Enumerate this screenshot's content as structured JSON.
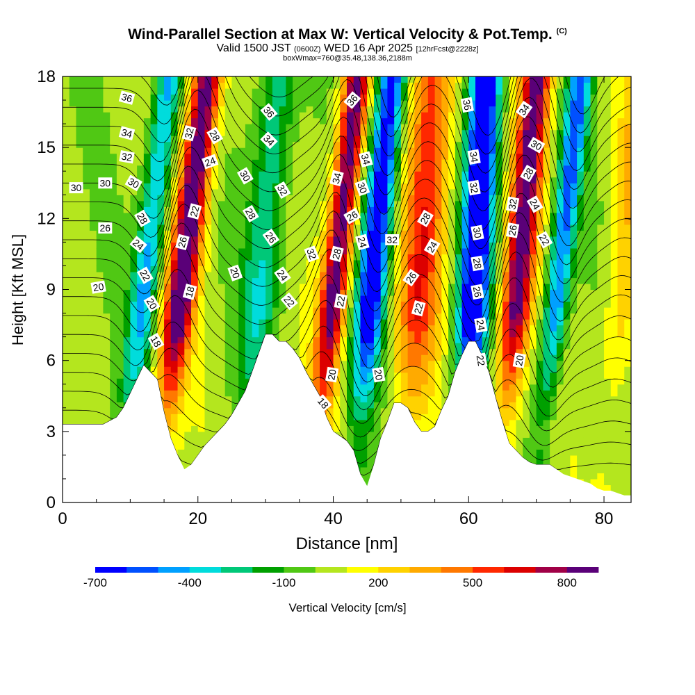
{
  "header": {
    "title": "Wind-Parallel Section at Max W: Vertical Velocity & Pot.Temp.",
    "copyright": "(C)",
    "valid_prefix": "Valid 1500 JST",
    "valid_utc": "(0600Z)",
    "valid_date": "WED 16 Apr 2025",
    "forecast": "[12hrFcst@2228z]",
    "boxline": "boxWmax=760@35.48,138.36,2188m"
  },
  "chart_data": {
    "type": "heatmap",
    "xlabel": "Distance [nm]",
    "ylabel": "Height [Kft MSL]",
    "xlim": [
      0,
      84
    ],
    "ylim": [
      0,
      18
    ],
    "x_ticks": [
      0,
      20,
      40,
      60,
      80
    ],
    "y_ticks": [
      0,
      3,
      6,
      9,
      12,
      15,
      18
    ],
    "colorbar": {
      "label": "Vertical Velocity [cm/s]",
      "tick_labels": [
        "-700",
        "-400",
        "-100",
        "200",
        "500",
        "800"
      ],
      "tick_values": [
        -700,
        -400,
        -100,
        200,
        500,
        800
      ],
      "range": [
        -700,
        900
      ],
      "colors": [
        "#0000ff",
        "#0050ff",
        "#00a0ff",
        "#00dcdc",
        "#00c878",
        "#00a000",
        "#50c814",
        "#b4e61e",
        "#ffff00",
        "#ffd200",
        "#ffaa00",
        "#ff7800",
        "#ff2800",
        "#dc0000",
        "#a00046",
        "#5a0078"
      ]
    },
    "terrain": [
      [
        0,
        3.3
      ],
      [
        6,
        3.3
      ],
      [
        8,
        3.6
      ],
      [
        9,
        4.0
      ],
      [
        10,
        4.6
      ],
      [
        11,
        5.2
      ],
      [
        12,
        5.8
      ],
      [
        14,
        5.2
      ],
      [
        15,
        3.8
      ],
      [
        16,
        2.7
      ],
      [
        17,
        2.0
      ],
      [
        18,
        1.4
      ],
      [
        19,
        1.6
      ],
      [
        20,
        2.0
      ],
      [
        21,
        2.4
      ],
      [
        22,
        2.7
      ],
      [
        23,
        3.0
      ],
      [
        24,
        3.3
      ],
      [
        25,
        3.7
      ],
      [
        26,
        4.2
      ],
      [
        27,
        4.7
      ],
      [
        28,
        5.5
      ],
      [
        29,
        6.3
      ],
      [
        30,
        7.1
      ],
      [
        31,
        7.1
      ],
      [
        32,
        6.8
      ],
      [
        33,
        6.8
      ],
      [
        34,
        6.5
      ],
      [
        35,
        6.1
      ],
      [
        36,
        5.5
      ],
      [
        37,
        5.0
      ],
      [
        38,
        4.5
      ],
      [
        39,
        3.6
      ],
      [
        40,
        3.0
      ],
      [
        41,
        2.8
      ],
      [
        42,
        2.6
      ],
      [
        43,
        2.2
      ],
      [
        44,
        1.2
      ],
      [
        45,
        0.7
      ],
      [
        46,
        1.6
      ],
      [
        47,
        2.7
      ],
      [
        48,
        3.4
      ],
      [
        49,
        4.2
      ],
      [
        50,
        4.2
      ],
      [
        51,
        4.0
      ],
      [
        52,
        3.4
      ],
      [
        53,
        3.0
      ],
      [
        54,
        3.0
      ],
      [
        55,
        3.2
      ],
      [
        56,
        3.9
      ],
      [
        57,
        4.5
      ],
      [
        58,
        5.5
      ],
      [
        59,
        6.2
      ],
      [
        60,
        6.8
      ],
      [
        61,
        6.8
      ],
      [
        62,
        6.2
      ],
      [
        63,
        5.5
      ],
      [
        64,
        4.4
      ],
      [
        65,
        3.4
      ],
      [
        66,
        2.5
      ],
      [
        67,
        2.2
      ],
      [
        68,
        1.9
      ],
      [
        69,
        1.7
      ],
      [
        70,
        1.6
      ],
      [
        71,
        1.6
      ],
      [
        72,
        1.6
      ],
      [
        73,
        1.4
      ],
      [
        74,
        1.2
      ],
      [
        75,
        1.1
      ],
      [
        76,
        1.0
      ],
      [
        77,
        0.9
      ],
      [
        78,
        0.8
      ],
      [
        79,
        0.6
      ],
      [
        80,
        0.5
      ],
      [
        81,
        0.5
      ],
      [
        82,
        0.4
      ],
      [
        83,
        0.3
      ],
      [
        84,
        0.3
      ]
    ],
    "contour_labels": [
      {
        "x": 9.5,
        "y": 17.1,
        "text": "36",
        "rot": 15
      },
      {
        "x": 9.5,
        "y": 15.6,
        "text": "34",
        "rot": 15
      },
      {
        "x": 9.5,
        "y": 14.6,
        "text": "32",
        "rot": 10
      },
      {
        "x": 2,
        "y": 13.3,
        "text": "30",
        "rot": 0
      },
      {
        "x": 6.3,
        "y": 13.5,
        "text": "30",
        "rot": 0
      },
      {
        "x": 10.5,
        "y": 13.5,
        "text": "30",
        "rot": 30
      },
      {
        "x": 6.3,
        "y": 11.6,
        "text": "26",
        "rot": 0
      },
      {
        "x": 11.8,
        "y": 12.0,
        "text": "28",
        "rot": 60
      },
      {
        "x": 11.2,
        "y": 10.9,
        "text": "24",
        "rot": 40
      },
      {
        "x": 12.2,
        "y": 9.6,
        "text": "22",
        "rot": 60
      },
      {
        "x": 5.3,
        "y": 9.1,
        "text": "20",
        "rot": -10
      },
      {
        "x": 13.2,
        "y": 8.4,
        "text": "20",
        "rot": 60
      },
      {
        "x": 13.8,
        "y": 6.8,
        "text": "18",
        "rot": 60
      },
      {
        "x": 18.7,
        "y": 15.6,
        "text": "32",
        "rot": -75
      },
      {
        "x": 22.5,
        "y": 15.5,
        "text": "28",
        "rot": 60
      },
      {
        "x": 21.8,
        "y": 14.4,
        "text": "24",
        "rot": -20
      },
      {
        "x": 19.5,
        "y": 12.3,
        "text": "22",
        "rot": -75
      },
      {
        "x": 17.7,
        "y": 11.0,
        "text": "26",
        "rot": -75
      },
      {
        "x": 18.8,
        "y": 8.9,
        "text": "18",
        "rot": -75
      },
      {
        "x": 30.5,
        "y": 16.5,
        "text": "36",
        "rot": 50
      },
      {
        "x": 30.5,
        "y": 15.3,
        "text": "34",
        "rot": 45
      },
      {
        "x": 27,
        "y": 13.8,
        "text": "30",
        "rot": 60
      },
      {
        "x": 32.5,
        "y": 13.2,
        "text": "32",
        "rot": 60
      },
      {
        "x": 27.8,
        "y": 12.2,
        "text": "28",
        "rot": 60
      },
      {
        "x": 30.8,
        "y": 11.2,
        "text": "26",
        "rot": 55
      },
      {
        "x": 25.5,
        "y": 9.7,
        "text": "20",
        "rot": 70
      },
      {
        "x": 32.5,
        "y": 9.6,
        "text": "24",
        "rot": 55
      },
      {
        "x": 33.5,
        "y": 8.5,
        "text": "22",
        "rot": 50
      },
      {
        "x": 36.8,
        "y": 10.5,
        "text": "32",
        "rot": 70
      },
      {
        "x": 38.5,
        "y": 4.2,
        "text": "18",
        "rot": 50
      },
      {
        "x": 42.8,
        "y": 17.0,
        "text": "36",
        "rot": -50
      },
      {
        "x": 44.8,
        "y": 14.5,
        "text": "34",
        "rot": 75
      },
      {
        "x": 40.5,
        "y": 13.7,
        "text": "34",
        "rot": -75
      },
      {
        "x": 44.3,
        "y": 13.3,
        "text": "30",
        "rot": 70
      },
      {
        "x": 42.8,
        "y": 12.1,
        "text": "26",
        "rot": -30
      },
      {
        "x": 40.5,
        "y": 10.5,
        "text": "28",
        "rot": -75
      },
      {
        "x": 44.3,
        "y": 11.0,
        "text": "24",
        "rot": 75
      },
      {
        "x": 48.7,
        "y": 11.1,
        "text": "32",
        "rot": 0
      },
      {
        "x": 41.1,
        "y": 8.5,
        "text": "22",
        "rot": -80
      },
      {
        "x": 39.8,
        "y": 5.4,
        "text": "20",
        "rot": -80
      },
      {
        "x": 46.7,
        "y": 5.4,
        "text": "20",
        "rot": 80
      },
      {
        "x": 53.6,
        "y": 12.0,
        "text": "28",
        "rot": -60
      },
      {
        "x": 54.6,
        "y": 10.8,
        "text": "24",
        "rot": -60
      },
      {
        "x": 51.5,
        "y": 9.5,
        "text": "26",
        "rot": -55
      },
      {
        "x": 52.6,
        "y": 8.2,
        "text": "22",
        "rot": -75
      },
      {
        "x": 59.8,
        "y": 16.8,
        "text": "36",
        "rot": 80
      },
      {
        "x": 60.8,
        "y": 14.6,
        "text": "34",
        "rot": 80
      },
      {
        "x": 60.8,
        "y": 13.3,
        "text": "32",
        "rot": 80
      },
      {
        "x": 61.3,
        "y": 11.4,
        "text": "30",
        "rot": 80
      },
      {
        "x": 61.3,
        "y": 10.1,
        "text": "28",
        "rot": 80
      },
      {
        "x": 61.3,
        "y": 8.9,
        "text": "26",
        "rot": 80
      },
      {
        "x": 61.8,
        "y": 7.5,
        "text": "24",
        "rot": 80
      },
      {
        "x": 61.8,
        "y": 6.0,
        "text": "22",
        "rot": 80
      },
      {
        "x": 68.2,
        "y": 16.6,
        "text": "34",
        "rot": -55
      },
      {
        "x": 70.0,
        "y": 15.1,
        "text": "30",
        "rot": 30
      },
      {
        "x": 68.8,
        "y": 13.9,
        "text": "28",
        "rot": -60
      },
      {
        "x": 66.5,
        "y": 12.6,
        "text": "32",
        "rot": -80
      },
      {
        "x": 69.8,
        "y": 12.6,
        "text": "24",
        "rot": 60
      },
      {
        "x": 66.5,
        "y": 11.5,
        "text": "26",
        "rot": -80
      },
      {
        "x": 71.2,
        "y": 11.1,
        "text": "22",
        "rot": 60
      },
      {
        "x": 67.5,
        "y": 6.0,
        "text": "20",
        "rot": -80
      }
    ]
  }
}
